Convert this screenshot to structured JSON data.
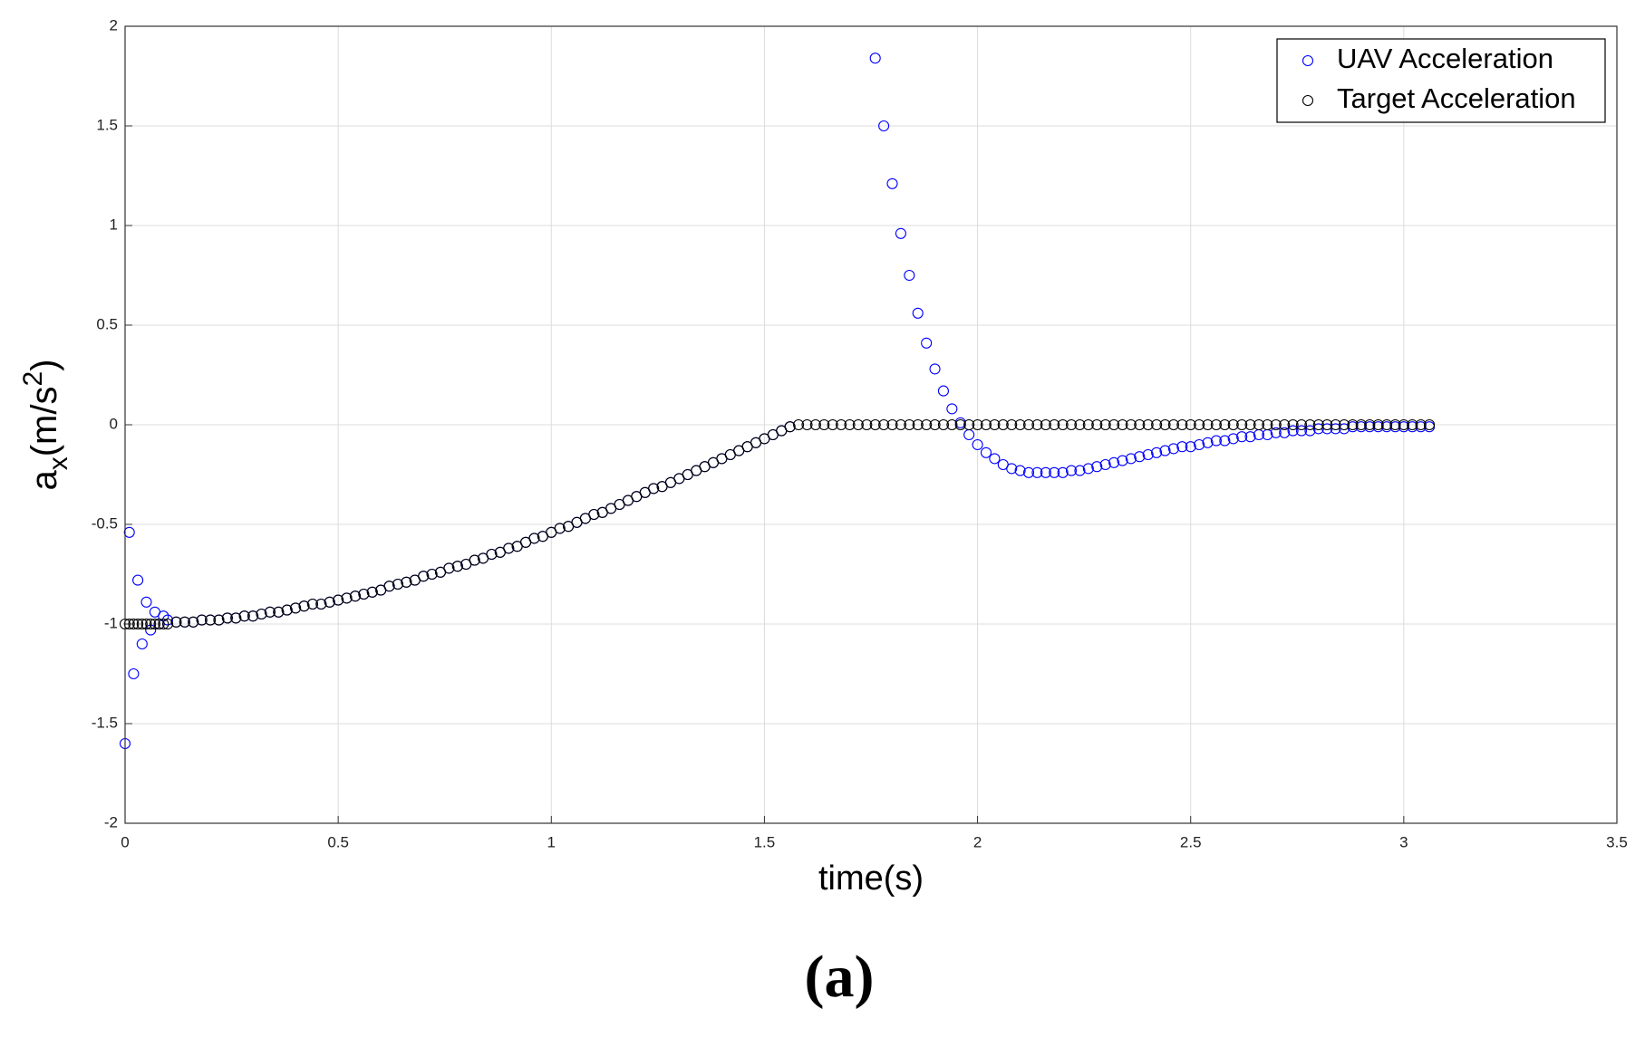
{
  "chart_data": {
    "type": "scatter",
    "xlabel": "time(s)",
    "ylabel": [
      "a",
      "x",
      "(m/s",
      "2",
      ")"
    ],
    "caption": "(a)",
    "xlim": [
      0,
      3.5
    ],
    "xticks": [
      0,
      0.5,
      1,
      1.5,
      2,
      2.5,
      3,
      3.5
    ],
    "ylim": [
      -2,
      2
    ],
    "yticks": [
      -2,
      -1.5,
      -1,
      -0.5,
      0,
      0.5,
      1,
      1.5,
      2
    ],
    "grid": true,
    "legend": "top-right",
    "x": [
      0,
      0.01,
      0.02,
      0.03,
      0.04,
      0.05,
      0.06,
      0.07,
      0.08,
      0.09,
      0.1,
      0.12,
      0.14,
      0.16,
      0.18,
      0.2,
      0.22,
      0.24,
      0.26,
      0.28,
      0.3,
      0.32,
      0.34,
      0.36,
      0.38,
      0.4,
      0.42,
      0.44,
      0.46,
      0.48,
      0.5,
      0.52,
      0.54,
      0.56,
      0.58,
      0.6,
      0.62,
      0.64,
      0.66,
      0.68,
      0.7,
      0.72,
      0.74,
      0.76,
      0.78,
      0.8,
      0.82,
      0.84,
      0.86,
      0.88,
      0.9,
      0.92,
      0.94,
      0.96,
      0.98,
      1,
      1.02,
      1.04,
      1.06,
      1.08,
      1.1,
      1.12,
      1.14,
      1.16,
      1.18,
      1.2,
      1.22,
      1.24,
      1.26,
      1.28,
      1.3,
      1.32,
      1.34,
      1.36,
      1.38,
      1.4,
      1.42,
      1.44,
      1.46,
      1.48,
      1.5,
      1.52,
      1.54,
      1.56,
      1.58,
      1.6,
      1.62,
      1.64,
      1.66,
      1.68,
      1.7,
      1.72,
      1.74,
      1.76,
      1.78,
      1.8,
      1.82,
      1.84,
      1.86,
      1.88,
      1.9,
      1.92,
      1.94,
      1.96,
      1.98,
      2,
      2.02,
      2.04,
      2.06,
      2.08,
      2.1,
      2.12,
      2.14,
      2.16,
      2.18,
      2.2,
      2.22,
      2.24,
      2.26,
      2.28,
      2.3,
      2.32,
      2.34,
      2.36,
      2.38,
      2.4,
      2.42,
      2.44,
      2.46,
      2.48,
      2.5,
      2.52,
      2.54,
      2.56,
      2.58,
      2.6,
      2.62,
      2.64,
      2.66,
      2.68,
      2.7,
      2.72,
      2.74,
      2.76,
      2.78,
      2.8,
      2.82,
      2.84,
      2.86,
      2.88,
      2.9,
      2.92,
      2.94,
      2.96,
      2.98,
      3,
      3.02,
      3.04,
      3.06
    ],
    "series": [
      {
        "name": "UAV Acceleration",
        "color": "#0000ff",
        "values": [
          -1.6,
          -0.54,
          -1.25,
          -0.78,
          -1.1,
          -0.89,
          -1.03,
          -0.94,
          -1,
          -0.96,
          -0.98,
          -0.99,
          -0.99,
          -0.99,
          -0.98,
          -0.98,
          -0.98,
          -0.97,
          -0.97,
          -0.96,
          -0.96,
          -0.95,
          -0.94,
          -0.94,
          -0.93,
          -0.92,
          -0.91,
          -0.9,
          -0.9,
          -0.89,
          -0.88,
          -0.87,
          -0.86,
          -0.85,
          -0.84,
          -0.83,
          -0.81,
          -0.8,
          -0.79,
          -0.78,
          -0.76,
          -0.75,
          -0.74,
          -0.72,
          -0.71,
          -0.7,
          -0.68,
          -0.67,
          -0.65,
          -0.64,
          -0.62,
          -0.61,
          -0.59,
          -0.57,
          -0.56,
          -0.54,
          -0.52,
          -0.51,
          -0.49,
          -0.47,
          -0.45,
          -0.44,
          -0.42,
          -0.4,
          -0.38,
          -0.36,
          -0.34,
          -0.32,
          -0.31,
          -0.29,
          -0.27,
          -0.25,
          -0.23,
          -0.21,
          -0.19,
          -0.17,
          -0.15,
          -0.13,
          -0.11,
          -0.09,
          -0.07,
          -0.05,
          -0.03,
          -0.01,
          null,
          null,
          null,
          null,
          null,
          null,
          null,
          null,
          null,
          1.84,
          1.5,
          1.21,
          0.96,
          0.75,
          0.56,
          0.41,
          0.28,
          0.17,
          0.08,
          0.01,
          -0.05,
          -0.1,
          -0.14,
          -0.17,
          -0.2,
          -0.22,
          -0.23,
          -0.24,
          -0.24,
          -0.24,
          -0.24,
          -0.24,
          -0.23,
          -0.23,
          -0.22,
          -0.21,
          -0.2,
          -0.19,
          -0.18,
          -0.17,
          -0.16,
          -0.15,
          -0.14,
          -0.13,
          -0.12,
          -0.11,
          -0.11,
          -0.1,
          -0.09,
          -0.08,
          -0.08,
          -0.07,
          -0.06,
          -0.06,
          -0.05,
          -0.05,
          -0.04,
          -0.04,
          -0.03,
          -0.03,
          -0.03,
          -0.02,
          -0.02,
          -0.02,
          -0.02,
          -0.01,
          -0.01,
          -0.01,
          -0.01,
          -0.01,
          -0.01,
          -0.01,
          -0.01,
          -0.01,
          -0.01
        ]
      },
      {
        "name": "Target Acceleration",
        "color": "#000000",
        "values": [
          -1,
          -1,
          -1,
          -1,
          -1,
          -1,
          -1,
          -1,
          -1,
          -1,
          -1,
          -0.99,
          -0.99,
          -0.99,
          -0.98,
          -0.98,
          -0.98,
          -0.97,
          -0.97,
          -0.96,
          -0.96,
          -0.95,
          -0.94,
          -0.94,
          -0.93,
          -0.92,
          -0.91,
          -0.9,
          -0.9,
          -0.89,
          -0.88,
          -0.87,
          -0.86,
          -0.85,
          -0.84,
          -0.83,
          -0.81,
          -0.8,
          -0.79,
          -0.78,
          -0.76,
          -0.75,
          -0.74,
          -0.72,
          -0.71,
          -0.7,
          -0.68,
          -0.67,
          -0.65,
          -0.64,
          -0.62,
          -0.61,
          -0.59,
          -0.57,
          -0.56,
          -0.54,
          -0.52,
          -0.51,
          -0.49,
          -0.47,
          -0.45,
          -0.44,
          -0.42,
          -0.4,
          -0.38,
          -0.36,
          -0.34,
          -0.32,
          -0.31,
          -0.29,
          -0.27,
          -0.25,
          -0.23,
          -0.21,
          -0.19,
          -0.17,
          -0.15,
          -0.13,
          -0.11,
          -0.09,
          -0.07,
          -0.05,
          -0.03,
          -0.01,
          0,
          0,
          0,
          0,
          0,
          0,
          0,
          0,
          0,
          0,
          0,
          0,
          0,
          0,
          0,
          0,
          0,
          0,
          0,
          0,
          0,
          0,
          0,
          0,
          0,
          0,
          0,
          0,
          0,
          0,
          0,
          0,
          0,
          0,
          0,
          0,
          0,
          0,
          0,
          0,
          0,
          0,
          0,
          0,
          0,
          0,
          0,
          0,
          0,
          0,
          0,
          0,
          0,
          0,
          0,
          0,
          0,
          0,
          0,
          0,
          0,
          0,
          0,
          0,
          0,
          0,
          0,
          0,
          0,
          0,
          0,
          0,
          0,
          0,
          0
        ]
      }
    ]
  }
}
